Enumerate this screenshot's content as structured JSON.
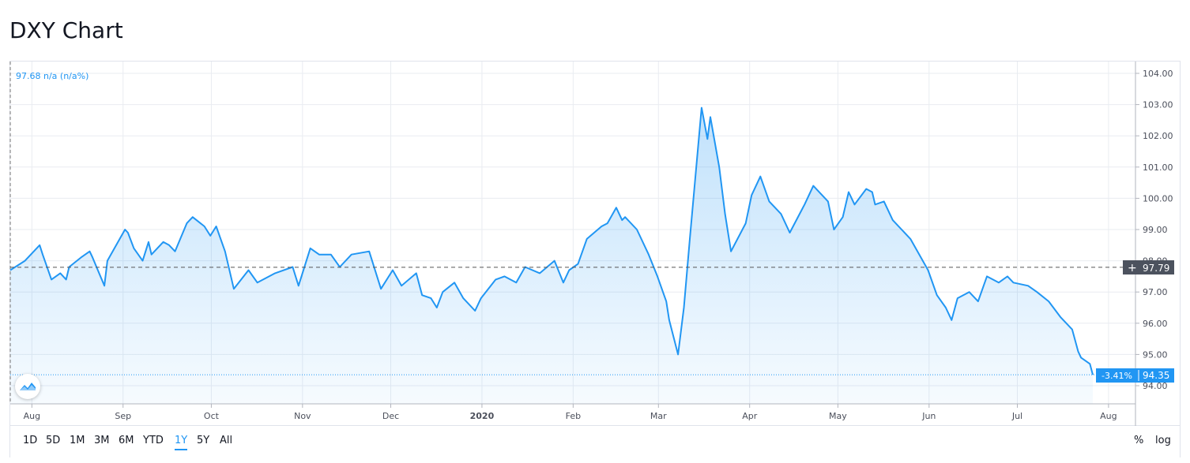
{
  "title": "DXY Chart",
  "legend": {
    "info": "97.68  n/a (n/a%)"
  },
  "price_scale": {
    "crosshair_value": "97.79",
    "last_price": "94.35",
    "change_pct": "-3.41%"
  },
  "colors": {
    "line": "#2196f3",
    "grid": "#e9ecf1",
    "axis_text": "#4b4f5b",
    "crosshair_label": "#4c525e"
  },
  "range_buttons": [
    "1D",
    "5D",
    "1M",
    "3M",
    "6M",
    "YTD",
    "1Y",
    "5Y",
    "All"
  ],
  "active_range": "1Y",
  "scale_buttons": {
    "percent": "%",
    "log": "log"
  },
  "icons": {
    "logo": "tradingview-logo-icon",
    "crosshair": "plus-icon"
  },
  "chart_data": {
    "type": "area",
    "title": "DXY Chart",
    "ylim": [
      93.6,
      104.4
    ],
    "y_ticks": [
      "94.00",
      "95.00",
      "96.00",
      "97.00",
      "98.00",
      "99.00",
      "100.00",
      "101.00",
      "102.00",
      "103.00",
      "104.00"
    ],
    "x_ticks": [
      "Aug",
      "Sep",
      "Oct",
      "Nov",
      "Dec",
      "2020",
      "Feb",
      "Mar",
      "Apr",
      "May",
      "Jun",
      "Jul",
      "Aug"
    ],
    "grid": true,
    "x": [
      "2019-07-26",
      "2019-07-31",
      "2019-08-05",
      "2019-08-06",
      "2019-08-09",
      "2019-08-12",
      "2019-08-14",
      "2019-08-15",
      "2019-08-19",
      "2019-08-22",
      "2019-08-23",
      "2019-08-27",
      "2019-08-28",
      "2019-09-03",
      "2019-09-04",
      "2019-09-06",
      "2019-09-09",
      "2019-09-11",
      "2019-09-12",
      "2019-09-16",
      "2019-09-18",
      "2019-09-20",
      "2019-09-24",
      "2019-09-26",
      "2019-09-30",
      "2019-10-02",
      "2019-10-04",
      "2019-10-07",
      "2019-10-10",
      "2019-10-15",
      "2019-10-18",
      "2019-10-24",
      "2019-10-30",
      "2019-11-01",
      "2019-11-05",
      "2019-11-08",
      "2019-11-12",
      "2019-11-15",
      "2019-11-19",
      "2019-11-25",
      "2019-11-29",
      "2019-12-03",
      "2019-12-06",
      "2019-12-11",
      "2019-12-13",
      "2019-12-16",
      "2019-12-18",
      "2019-12-20",
      "2019-12-24",
      "2019-12-27",
      "2019-12-31",
      "2020-01-02",
      "2020-01-07",
      "2020-01-10",
      "2020-01-14",
      "2020-01-17",
      "2020-01-22",
      "2020-01-27",
      "2020-01-30",
      "2020-02-01",
      "2020-02-04",
      "2020-02-07",
      "2020-02-12",
      "2020-02-14",
      "2020-02-17",
      "2020-02-19",
      "2020-02-20",
      "2020-02-24",
      "2020-02-28",
      "2020-03-02",
      "2020-03-05",
      "2020-03-06",
      "2020-03-09",
      "2020-03-11",
      "2020-03-13",
      "2020-03-17",
      "2020-03-19",
      "2020-03-20",
      "2020-03-23",
      "2020-03-25",
      "2020-03-27",
      "2020-04-01",
      "2020-04-03",
      "2020-04-06",
      "2020-04-09",
      "2020-04-13",
      "2020-04-16",
      "2020-04-21",
      "2020-04-24",
      "2020-04-29",
      "2020-05-01",
      "2020-05-04",
      "2020-05-06",
      "2020-05-08",
      "2020-05-12",
      "2020-05-14",
      "2020-05-15",
      "2020-05-18",
      "2020-05-21",
      "2020-05-27",
      "2020-06-02",
      "2020-06-05",
      "2020-06-08",
      "2020-06-10",
      "2020-06-12",
      "2020-06-16",
      "2020-06-19",
      "2020-06-22",
      "2020-06-26",
      "2020-06-29",
      "2020-07-01",
      "2020-07-06",
      "2020-07-09",
      "2020-07-13",
      "2020-07-17",
      "2020-07-21",
      "2020-07-23",
      "2020-07-24",
      "2020-07-27",
      "2020-07-28"
    ],
    "series": [
      {
        "values": [
          97.7,
          98.0,
          98.5,
          98.2,
          97.4,
          97.6,
          97.4,
          97.8,
          98.1,
          98.3,
          98.1,
          97.2,
          98.0,
          99.0,
          98.9,
          98.4,
          98.0,
          98.6,
          98.2,
          98.6,
          98.5,
          98.3,
          99.2,
          99.4,
          99.1,
          98.8,
          99.1,
          98.3,
          97.1,
          97.7,
          97.3,
          97.6,
          97.8,
          97.2,
          98.4,
          98.2,
          98.2,
          97.8,
          98.2,
          98.3,
          97.1,
          97.7,
          97.2,
          97.6,
          96.9,
          96.8,
          96.5,
          97.0,
          97.3,
          96.8,
          96.4,
          96.8,
          97.4,
          97.5,
          97.3,
          97.8,
          97.6,
          98.0,
          97.3,
          97.7,
          97.9,
          98.7,
          99.1,
          99.2,
          99.7,
          99.3,
          99.4,
          99.0,
          98.2,
          97.5,
          96.7,
          96.1,
          95.0,
          96.5,
          98.7,
          102.9,
          101.9,
          102.6,
          101.0,
          99.5,
          98.3,
          99.2,
          100.1,
          100.7,
          99.9,
          99.5,
          98.9,
          99.8,
          100.4,
          99.9,
          99.0,
          99.4,
          100.2,
          99.8,
          100.3,
          100.2,
          99.8,
          99.9,
          99.3,
          98.7,
          97.7,
          96.9,
          96.5,
          96.1,
          96.8,
          97.0,
          96.7,
          97.5,
          97.3,
          97.5,
          97.3,
          97.2,
          97.0,
          96.7,
          96.2,
          95.8,
          95.1,
          94.9,
          94.7,
          94.35
        ]
      }
    ]
  }
}
